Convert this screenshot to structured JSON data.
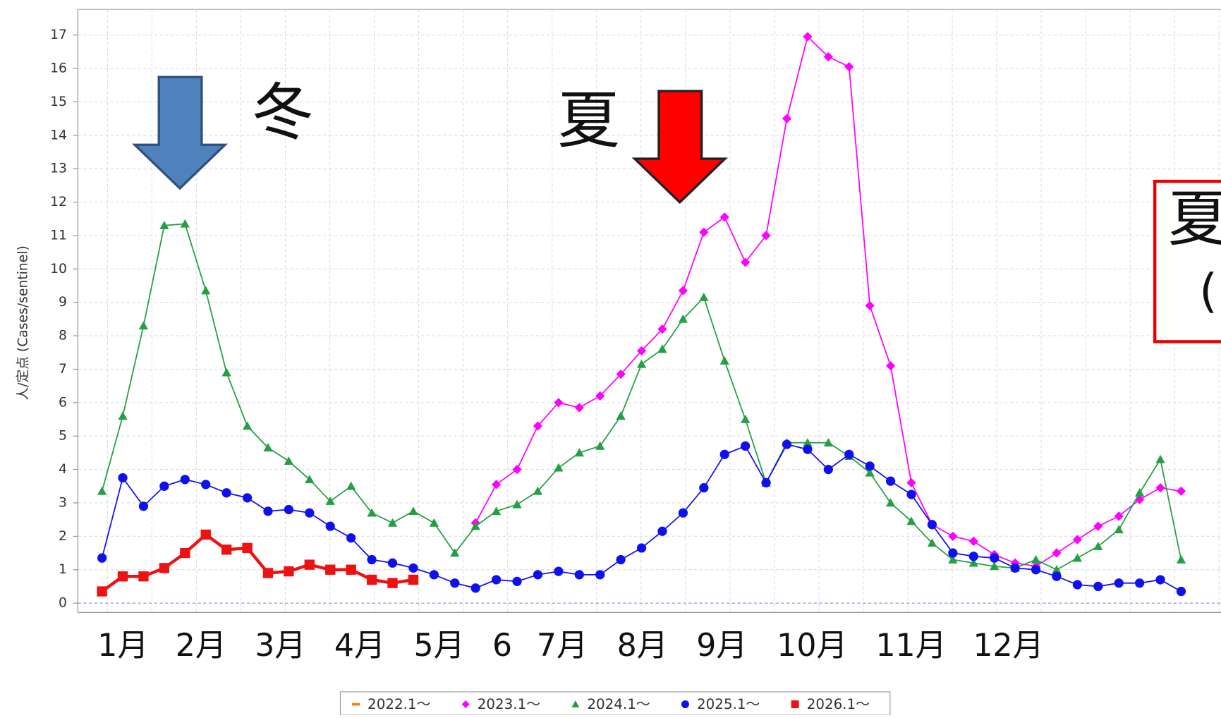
{
  "chart_data": {
    "type": "line",
    "ylabel": "人/定点 (Cases/sentinel)",
    "ylim": [
      -0.3,
      17.75
    ],
    "yticks": [
      0,
      1,
      2,
      3,
      4,
      5,
      6,
      7,
      8,
      9,
      10,
      11,
      12,
      13,
      14,
      15,
      16,
      17
    ],
    "grid": true,
    "categories": [
      null,
      null,
      null,
      null,
      null,
      null,
      null,
      null,
      null,
      null,
      null,
      null,
      null,
      null,
      null,
      null,
      null,
      null,
      null,
      null,
      null,
      null,
      null,
      null,
      null,
      null,
      null,
      null,
      null,
      null,
      null,
      null,
      null,
      null,
      null,
      null,
      null,
      null,
      null,
      null,
      null,
      null,
      null,
      null,
      null,
      null,
      null,
      null,
      null,
      null,
      null,
      null,
      null
    ],
    "month_labels": [
      "1月",
      "2月",
      "3月",
      "4月",
      "5月",
      "6",
      "7月",
      "8月",
      "9月",
      "10月",
      "11月",
      "12月"
    ],
    "annotations": [
      "冬",
      "夏"
    ],
    "box_text": [
      "夏",
      "("
    ],
    "legend": "bottom",
    "series": [
      {
        "name": "2022.1～",
        "color": "#ff7f00",
        "marker": "bar",
        "values": [
          null,
          null,
          null,
          null,
          null,
          null,
          null,
          null,
          null,
          null,
          null,
          null,
          null,
          null,
          null,
          null,
          null,
          null,
          null,
          null,
          null,
          null,
          null,
          null,
          null,
          null,
          null,
          null,
          null,
          null,
          null,
          null,
          null,
          null,
          null,
          null,
          null,
          null,
          null,
          null,
          null,
          null,
          null,
          null,
          null,
          null,
          null,
          null,
          null,
          null,
          null,
          null,
          null
        ]
      },
      {
        "name": "2023.1～",
        "color": "#ff00ff",
        "marker": "diamond",
        "values": [
          null,
          null,
          null,
          null,
          null,
          null,
          null,
          null,
          null,
          null,
          null,
          null,
          null,
          null,
          null,
          null,
          null,
          null,
          2.4,
          3.55,
          4.0,
          5.3,
          6.0,
          5.85,
          6.2,
          6.85,
          7.55,
          8.2,
          9.35,
          11.1,
          11.55,
          10.2,
          11.0,
          14.5,
          16.95,
          16.35,
          16.05,
          8.9,
          7.1,
          3.6,
          2.35,
          2.0,
          1.85,
          1.45,
          1.2,
          1.1,
          1.5,
          1.9,
          2.3,
          2.6,
          3.1,
          3.45,
          3.35
        ]
      },
      {
        "name": "2024.1～",
        "color": "#23a044",
        "marker": "triangle",
        "values": [
          3.35,
          5.6,
          8.3,
          11.3,
          11.35,
          9.35,
          6.9,
          5.3,
          4.65,
          4.25,
          3.7,
          3.05,
          3.5,
          2.7,
          2.4,
          2.75,
          2.4,
          1.5,
          2.3,
          2.75,
          2.95,
          3.35,
          4.05,
          4.5,
          4.7,
          5.6,
          7.15,
          7.6,
          8.5,
          9.15,
          7.25,
          5.5,
          3.6,
          4.8,
          4.8,
          4.8,
          4.4,
          3.9,
          3.0,
          2.45,
          1.8,
          1.3,
          1.2,
          1.1,
          1.05,
          1.3,
          1.0,
          1.35,
          1.7,
          2.2,
          3.3,
          4.3,
          1.3
        ]
      },
      {
        "name": "2025.1～",
        "color": "#1010ee",
        "marker": "circle",
        "values": [
          1.35,
          3.75,
          2.9,
          3.5,
          3.7,
          3.55,
          3.3,
          3.15,
          2.75,
          2.8,
          2.7,
          2.3,
          1.95,
          1.3,
          1.2,
          1.05,
          0.85,
          0.6,
          0.45,
          0.7,
          0.65,
          0.85,
          0.95,
          0.85,
          0.85,
          1.3,
          1.65,
          2.15,
          2.7,
          3.45,
          4.45,
          4.7,
          3.6,
          4.75,
          4.6,
          4.0,
          4.45,
          4.1,
          3.65,
          3.25,
          2.35,
          1.5,
          1.4,
          1.35,
          1.05,
          1.0,
          0.8,
          0.55,
          0.5,
          0.6,
          0.6,
          0.7,
          0.35
        ]
      },
      {
        "name": "2026.1～",
        "color": "#ee1111",
        "marker": "square",
        "values": [
          0.35,
          0.8,
          0.8,
          1.05,
          1.5,
          2.05,
          1.6,
          1.65,
          0.9,
          0.95,
          1.15,
          1.0,
          1.0,
          0.7,
          0.6,
          0.7,
          null,
          null,
          null,
          null,
          null,
          null,
          null,
          null,
          null,
          null,
          null,
          null,
          null,
          null,
          null,
          null,
          null,
          null,
          null,
          null,
          null,
          null,
          null,
          null,
          null,
          null,
          null,
          null,
          null,
          null,
          null,
          null,
          null,
          null,
          null,
          null,
          null
        ]
      }
    ]
  }
}
